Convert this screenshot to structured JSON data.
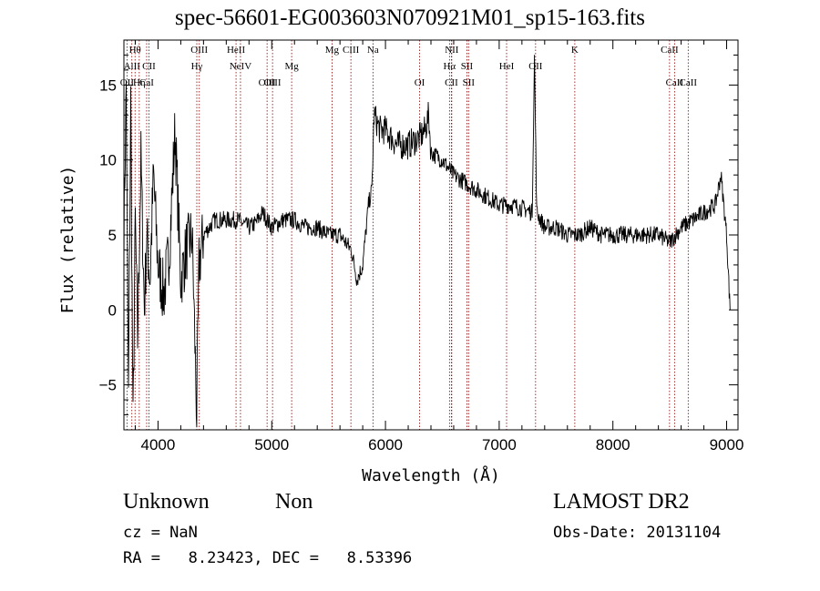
{
  "chart_data": {
    "type": "line",
    "title": "spec-56601-EG003603N070921M01_sp15-163.fits",
    "xlabel": "Wavelength (Å)",
    "ylabel": "Flux (relative)",
    "xlim": [
      3700,
      9100
    ],
    "ylim": [
      -8,
      18
    ],
    "xticks": [
      4000,
      5000,
      6000,
      7000,
      8000,
      9000
    ],
    "yticks": [
      -5,
      0,
      5,
      10,
      15
    ],
    "grid": false,
    "line_color": "#000000",
    "marker_color": "#8b0000",
    "spectrum_anchors": [
      [
        3700,
        5
      ],
      [
        3720,
        15
      ],
      [
        3740,
        -6
      ],
      [
        3760,
        14
      ],
      [
        3780,
        -8
      ],
      [
        3800,
        6
      ],
      [
        3820,
        -2
      ],
      [
        3850,
        10
      ],
      [
        3880,
        0
      ],
      [
        3900,
        5
      ],
      [
        3930,
        2
      ],
      [
        3960,
        9
      ],
      [
        4000,
        3
      ],
      [
        4050,
        1
      ],
      [
        4100,
        4
      ],
      [
        4150,
        12
      ],
      [
        4200,
        2
      ],
      [
        4250,
        4
      ],
      [
        4300,
        5
      ],
      [
        4340,
        -7
      ],
      [
        4360,
        3
      ],
      [
        4400,
        5
      ],
      [
        4500,
        6
      ],
      [
        4600,
        6
      ],
      [
        4700,
        6
      ],
      [
        4800,
        5.5
      ],
      [
        4860,
        5.8
      ],
      [
        4920,
        6.5
      ],
      [
        5000,
        5.5
      ],
      [
        5100,
        6
      ],
      [
        5200,
        6
      ],
      [
        5300,
        5.5
      ],
      [
        5400,
        5.5
      ],
      [
        5500,
        5
      ],
      [
        5600,
        5
      ],
      [
        5700,
        4
      ],
      [
        5750,
        2
      ],
      [
        5800,
        3
      ],
      [
        5850,
        7
      ],
      [
        5880,
        8
      ],
      [
        5900,
        13
      ],
      [
        5950,
        12
      ],
      [
        6000,
        12
      ],
      [
        6100,
        11
      ],
      [
        6200,
        11
      ],
      [
        6300,
        11.5
      ],
      [
        6350,
        12
      ],
      [
        6380,
        13
      ],
      [
        6400,
        10.5
      ],
      [
        6500,
        10
      ],
      [
        6600,
        9
      ],
      [
        6700,
        8.5
      ],
      [
        6800,
        8
      ],
      [
        6900,
        7.5
      ],
      [
        7000,
        7
      ],
      [
        7100,
        7
      ],
      [
        7200,
        6.8
      ],
      [
        7290,
        6.5
      ],
      [
        7310,
        16.8
      ],
      [
        7330,
        6.5
      ],
      [
        7400,
        5.5
      ],
      [
        7500,
        5.5
      ],
      [
        7600,
        5
      ],
      [
        7700,
        5
      ],
      [
        7800,
        5.5
      ],
      [
        7900,
        5
      ],
      [
        8000,
        5
      ],
      [
        8100,
        5
      ],
      [
        8200,
        5
      ],
      [
        8300,
        5
      ],
      [
        8400,
        5
      ],
      [
        8500,
        4.5
      ],
      [
        8600,
        5.5
      ],
      [
        8700,
        6
      ],
      [
        8800,
        6.5
      ],
      [
        8900,
        7
      ],
      [
        8950,
        9
      ],
      [
        9000,
        5
      ],
      [
        9030,
        0
      ]
    ],
    "lines": [
      {
        "label": "Hθ",
        "x": 3798,
        "row": 1
      },
      {
        "label": "AlII",
        "x": 3770,
        "row": 2
      },
      {
        "label": "OII",
        "x": 3727,
        "row": 3
      },
      {
        "label": "Hη",
        "x": 3835,
        "row": 3
      },
      {
        "label": "CII",
        "x": 3920,
        "row": 2
      },
      {
        "label": "CaI",
        "x": 3900,
        "row": 3
      },
      {
        "label": "OIII",
        "x": 4363,
        "row": 1
      },
      {
        "label": "Hγ",
        "x": 4341,
        "row": 2
      },
      {
        "label": "HeII",
        "x": 4686,
        "row": 1
      },
      {
        "label": "NeIV",
        "x": 4725,
        "row": 2
      },
      {
        "label": "OIII",
        "x": 4959,
        "row": 3
      },
      {
        "label": "OIII",
        "x": 5007,
        "row": 3
      },
      {
        "label": "Mg",
        "x": 5175,
        "row": 2
      },
      {
        "label": "Mg",
        "x": 5530,
        "row": 1
      },
      {
        "label": "CIII",
        "x": 5696,
        "row": 1
      },
      {
        "label": "Na",
        "x": 5890,
        "row": 1
      },
      {
        "label": "NII",
        "x": 6583,
        "row": 1
      },
      {
        "label": "OI",
        "x": 6300,
        "row": 3
      },
      {
        "label": "Hα",
        "x": 6563,
        "row": 2
      },
      {
        "label": "SII",
        "x": 6716,
        "row": 2
      },
      {
        "label": "SII",
        "x": 6731,
        "row": 3
      },
      {
        "label": "CII",
        "x": 6580,
        "row": 3
      },
      {
        "label": "OII",
        "x": 7320,
        "row": 2
      },
      {
        "label": "K",
        "x": 7665,
        "row": 1
      },
      {
        "label": "HeI",
        "x": 7065,
        "row": 2
      },
      {
        "label": "CaII",
        "x": 8498,
        "row": 1
      },
      {
        "label": "CaII",
        "x": 8542,
        "row": 3
      },
      {
        "label": "CaII",
        "x": 8662,
        "row": 3
      }
    ]
  },
  "info": {
    "class_label": "Unknown",
    "subclass_label": "Non",
    "survey": "LAMOST DR2",
    "cz": "cz = NaN",
    "obs_date": "Obs-Date: 20131104",
    "coords": "RA =   8.23423, DEC =   8.53396"
  }
}
